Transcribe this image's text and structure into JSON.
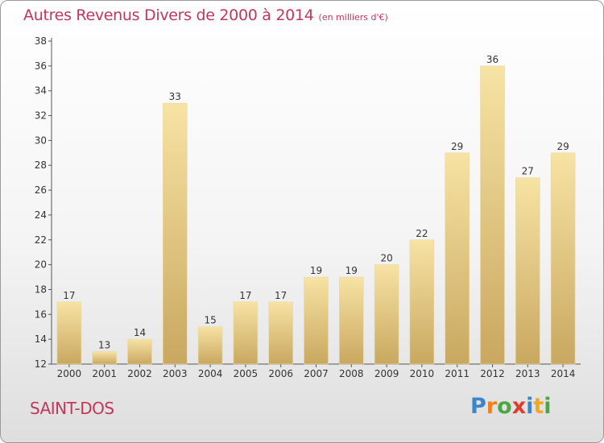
{
  "title": "Autres Revenus Divers de 2000 à 2014",
  "title_unit": "(en milliers d'€)",
  "town": "SAINT-DOS",
  "logo": {
    "letters": [
      "P",
      "r",
      "o",
      "x",
      "i",
      "t",
      "i"
    ],
    "colors": [
      "#3a86c8",
      "#f07f1e",
      "#4aa843",
      "#e23b2c",
      "#3a86c8",
      "#f0a81e",
      "#4aa843"
    ]
  },
  "colors": {
    "bar_light": "#f7e3a4",
    "bar_dark": "#c9a860",
    "title": "#c2375c"
  },
  "chart_data": {
    "type": "bar",
    "title": "Autres Revenus Divers de 2000 à 2014",
    "categories": [
      "2000",
      "2001",
      "2002",
      "2003",
      "2004",
      "2005",
      "2006",
      "2007",
      "2008",
      "2009",
      "2010",
      "2011",
      "2012",
      "2013",
      "2014"
    ],
    "values": [
      17,
      13,
      14,
      33,
      15,
      17,
      17,
      19,
      19,
      20,
      22,
      29,
      36,
      27,
      29
    ],
    "xlabel": "",
    "ylabel": "",
    "ylim": [
      12,
      38
    ],
    "yticks": [
      12,
      14,
      16,
      18,
      20,
      22,
      24,
      26,
      28,
      30,
      32,
      34,
      36,
      38
    ],
    "grid": false,
    "legend": "none",
    "data_labels": true
  }
}
